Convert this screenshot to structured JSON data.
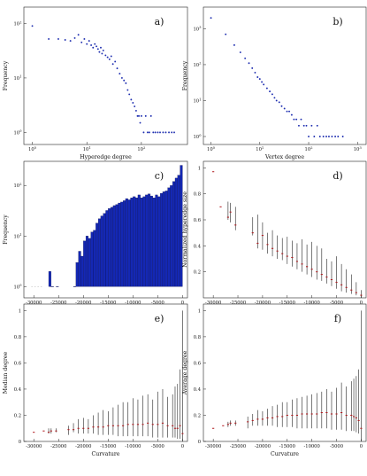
{
  "figure": {
    "panels": [
      {
        "id": "a",
        "label": "a)"
      },
      {
        "id": "b",
        "label": "b)"
      },
      {
        "id": "c",
        "label": "c)"
      },
      {
        "id": "d",
        "label": "d)"
      },
      {
        "id": "e",
        "label": "e)"
      },
      {
        "id": "f",
        "label": "f)"
      }
    ]
  },
  "colors": {
    "scatter": "#1f2fb0",
    "bar": "#1428b4",
    "bar_edge": "#0a0a40",
    "errorbar": "#222222",
    "median": "#b0161a"
  },
  "chart_data": [
    {
      "panel": "a",
      "type": "scatter",
      "label": "a)",
      "xlabel": "Hyperedge degree",
      "ylabel": "Frequency",
      "xscale": "log",
      "yscale": "log",
      "xlim": [
        0.7,
        700
      ],
      "ylim": [
        0.6,
        200
      ],
      "xticks": [
        "10^0",
        "10^1",
        "10^2"
      ],
      "yticks": [
        "10^0",
        "10^1",
        "10^2"
      ],
      "x": [
        1,
        2,
        3,
        4,
        5,
        6,
        7,
        8,
        9,
        10,
        11,
        12,
        13,
        14,
        15,
        16,
        17,
        18,
        19,
        20,
        22,
        24,
        26,
        28,
        30,
        33,
        36,
        40,
        44,
        48,
        52,
        56,
        60,
        65,
        70,
        75,
        80,
        85,
        90,
        95,
        100,
        110,
        120,
        130,
        140,
        150,
        165,
        180,
        200,
        220,
        250,
        280,
        320,
        360,
        400
      ],
      "y": [
        90,
        52,
        52,
        50,
        48,
        54,
        62,
        45,
        52,
        42,
        48,
        40,
        36,
        42,
        38,
        34,
        30,
        36,
        28,
        32,
        26,
        24,
        22,
        25,
        18,
        20,
        15,
        12,
        10,
        9,
        8,
        6,
        5,
        4,
        3.5,
        3,
        2.5,
        2,
        2,
        1.5,
        2,
        1,
        2,
        1,
        1,
        2,
        1,
        1,
        1,
        1,
        1,
        1,
        1,
        1,
        1
      ]
    },
    {
      "panel": "b",
      "type": "scatter",
      "label": "b)",
      "xlabel": "Vertex degree",
      "ylabel": "Frequency",
      "xscale": "log",
      "yscale": "log",
      "xlim": [
        0.7,
        1500
      ],
      "ylim": [
        0.6,
        4000
      ],
      "xticks": [
        "10^0",
        "10^1",
        "10^2",
        "10^3"
      ],
      "yticks": [
        "10^0",
        "10^1",
        "10^2",
        "10^3"
      ],
      "x": [
        1,
        2,
        3,
        4,
        5,
        6,
        7,
        8,
        9,
        10,
        11,
        12,
        14,
        16,
        18,
        20,
        22,
        25,
        28,
        32,
        36,
        40,
        45,
        50,
        56,
        63,
        70,
        80,
        90,
        100,
        115,
        130,
        150,
        170,
        200,
        230,
        260,
        300,
        350,
        400,
        500
      ],
      "y": [
        2000,
        700,
        350,
        220,
        150,
        110,
        80,
        60,
        45,
        40,
        33,
        28,
        22,
        18,
        15,
        12,
        10,
        9,
        7,
        6,
        5,
        5,
        4,
        3,
        3,
        2,
        3,
        2,
        2,
        1,
        2,
        1,
        2,
        1,
        1,
        1,
        1,
        1,
        1,
        1,
        1
      ]
    },
    {
      "panel": "c",
      "type": "bar",
      "label": "c)",
      "xlabel": "",
      "ylabel": "Frequency",
      "yscale": "log",
      "xlim": [
        -32000,
        1000
      ],
      "ylim": [
        0.6,
        300
      ],
      "xticks": [
        -30000,
        -25000,
        -20000,
        -15000,
        -10000,
        -5000,
        0
      ],
      "yticks": [
        "10^0",
        "10^1",
        "10^2"
      ],
      "bin_width": 500,
      "bin_starts": [
        -27000,
        -26500,
        -25500,
        -22000,
        -21500,
        -21000,
        -20500,
        -20000,
        -19500,
        -19000,
        -18500,
        -18000,
        -17500,
        -17000,
        -16500,
        -16000,
        -15500,
        -15000,
        -14500,
        -14000,
        -13500,
        -13000,
        -12500,
        -12000,
        -11500,
        -11000,
        -10500,
        -10000,
        -9500,
        -9000,
        -8500,
        -8000,
        -7500,
        -7000,
        -6500,
        -6000,
        -5500,
        -5000,
        -4500,
        -4000,
        -3500,
        -3000,
        -2500,
        -2000,
        -1500,
        -1000,
        -500
      ],
      "values": [
        2,
        1,
        1,
        1,
        3,
        5,
        4,
        8,
        10,
        9,
        12,
        13,
        18,
        22,
        25,
        28,
        32,
        35,
        37,
        40,
        42,
        45,
        47,
        50,
        55,
        52,
        57,
        60,
        57,
        65,
        57,
        60,
        65,
        68,
        62,
        57,
        65,
        60,
        70,
        75,
        78,
        90,
        100,
        120,
        140,
        160,
        250
      ]
    },
    {
      "panel": "d",
      "type": "errorbar",
      "label": "d)",
      "xlabel": "",
      "ylabel": "Normalized hyperedge size",
      "xlim": [
        -32000,
        1000
      ],
      "ylim": [
        0,
        1.05
      ],
      "xticks": [
        -30000,
        -25000,
        -20000,
        -15000,
        -10000,
        -5000,
        0
      ],
      "yticks": [
        0.2,
        0.4,
        0.6,
        0.8,
        1
      ],
      "x": [
        -30000,
        -28500,
        -27000,
        -26500,
        -25500,
        -22000,
        -21000,
        -20000,
        -19000,
        -18000,
        -17000,
        -16000,
        -15000,
        -14000,
        -13000,
        -12000,
        -11000,
        -10000,
        -9000,
        -8000,
        -7000,
        -6000,
        -5000,
        -4000,
        -3000,
        -2000,
        -1000,
        0
      ],
      "median": [
        0.97,
        0.7,
        0.62,
        0.66,
        0.56,
        0.5,
        0.42,
        0.48,
        0.41,
        0.38,
        0.36,
        0.34,
        0.32,
        0.31,
        0.28,
        0.26,
        0.24,
        0.22,
        0.2,
        0.18,
        0.16,
        0.14,
        0.12,
        0.1,
        0.08,
        0.06,
        0.04,
        0.02
      ],
      "low": [
        0.97,
        0.7,
        0.6,
        0.58,
        0.52,
        0.48,
        0.38,
        0.37,
        0.34,
        0.32,
        0.3,
        0.29,
        0.26,
        0.24,
        0.22,
        0.2,
        0.18,
        0.16,
        0.14,
        0.13,
        0.11,
        0.09,
        0.07,
        0.05,
        0.04,
        0.03,
        0.02,
        0.0
      ],
      "high": [
        0.97,
        0.7,
        0.74,
        0.73,
        0.7,
        0.62,
        0.64,
        0.58,
        0.5,
        0.52,
        0.48,
        0.46,
        0.47,
        0.44,
        0.42,
        0.45,
        0.41,
        0.43,
        0.4,
        0.38,
        0.3,
        0.28,
        0.32,
        0.26,
        0.22,
        0.18,
        0.12,
        0.06
      ]
    },
    {
      "panel": "e",
      "type": "errorbar",
      "label": "e)",
      "xlabel": "Curvature",
      "ylabel": "Median degree",
      "xlim": [
        -32000,
        1000
      ],
      "ylim": [
        0,
        1.05
      ],
      "xticks": [
        -30000,
        -25000,
        -20000,
        -15000,
        -10000,
        -5000,
        0
      ],
      "yticks": [
        0,
        0.2,
        0.4,
        0.6,
        0.8,
        1
      ],
      "x": [
        -30000,
        -28000,
        -27000,
        -26500,
        -25500,
        -23000,
        -22000,
        -21000,
        -20000,
        -19000,
        -18000,
        -17000,
        -16000,
        -15000,
        -14000,
        -13000,
        -12000,
        -11000,
        -10000,
        -9000,
        -8000,
        -7000,
        -6000,
        -5000,
        -4000,
        -3000,
        -2000,
        -1500,
        -1000,
        -500,
        0
      ],
      "median": [
        0.07,
        0.08,
        0.07,
        0.08,
        0.08,
        0.09,
        0.09,
        0.1,
        0.1,
        0.1,
        0.11,
        0.11,
        0.11,
        0.12,
        0.12,
        0.12,
        0.12,
        0.13,
        0.13,
        0.13,
        0.13,
        0.14,
        0.13,
        0.13,
        0.14,
        0.12,
        0.12,
        0.1,
        0.1,
        0.12,
        0.06
      ],
      "low": [
        0.07,
        0.08,
        0.06,
        0.06,
        0.07,
        0.05,
        0.07,
        0.06,
        0.06,
        0.06,
        0.06,
        0.05,
        0.05,
        0.05,
        0.05,
        0.04,
        0.04,
        0.04,
        0.04,
        0.04,
        0.04,
        0.04,
        0.03,
        0.03,
        0.03,
        0.03,
        0.03,
        0.03,
        0.02,
        0.02,
        0.0
      ],
      "high": [
        0.07,
        0.08,
        0.1,
        0.1,
        0.1,
        0.12,
        0.14,
        0.17,
        0.18,
        0.17,
        0.2,
        0.22,
        0.24,
        0.23,
        0.26,
        0.28,
        0.3,
        0.3,
        0.33,
        0.32,
        0.35,
        0.36,
        0.32,
        0.38,
        0.4,
        0.34,
        0.36,
        0.42,
        0.44,
        0.55,
        1.0
      ]
    },
    {
      "panel": "f",
      "type": "errorbar",
      "label": "f)",
      "xlabel": "Curvature",
      "ylabel": "Average degree",
      "xlim": [
        -32000,
        1000
      ],
      "ylim": [
        0,
        1.05
      ],
      "xticks": [
        -30000,
        -25000,
        -20000,
        -15000,
        -10000,
        -5000,
        0
      ],
      "yticks": [
        0,
        0.2,
        0.4,
        0.6,
        0.8,
        1
      ],
      "x": [
        -30000,
        -28000,
        -27000,
        -26500,
        -25500,
        -23000,
        -22000,
        -21000,
        -20000,
        -19000,
        -18000,
        -17000,
        -16000,
        -15000,
        -14000,
        -13000,
        -12000,
        -11000,
        -10000,
        -9000,
        -8000,
        -7000,
        -6000,
        -5000,
        -4000,
        -3000,
        -2000,
        -1500,
        -1000,
        -500,
        0
      ],
      "median": [
        0.1,
        0.12,
        0.13,
        0.14,
        0.14,
        0.15,
        0.16,
        0.17,
        0.17,
        0.18,
        0.18,
        0.19,
        0.19,
        0.2,
        0.2,
        0.2,
        0.21,
        0.21,
        0.21,
        0.21,
        0.22,
        0.22,
        0.21,
        0.21,
        0.22,
        0.2,
        0.2,
        0.19,
        0.18,
        0.16,
        0.1
      ],
      "low": [
        0.1,
        0.12,
        0.11,
        0.12,
        0.12,
        0.1,
        0.12,
        0.12,
        0.12,
        0.12,
        0.12,
        0.11,
        0.11,
        0.11,
        0.11,
        0.1,
        0.1,
        0.1,
        0.1,
        0.1,
        0.1,
        0.1,
        0.09,
        0.09,
        0.09,
        0.08,
        0.08,
        0.08,
        0.07,
        0.06,
        0.0
      ],
      "high": [
        0.1,
        0.12,
        0.15,
        0.16,
        0.16,
        0.19,
        0.21,
        0.24,
        0.23,
        0.25,
        0.27,
        0.28,
        0.3,
        0.3,
        0.32,
        0.33,
        0.34,
        0.35,
        0.36,
        0.37,
        0.38,
        0.4,
        0.38,
        0.41,
        0.45,
        0.42,
        0.46,
        0.48,
        0.5,
        0.55,
        1.0
      ]
    }
  ]
}
